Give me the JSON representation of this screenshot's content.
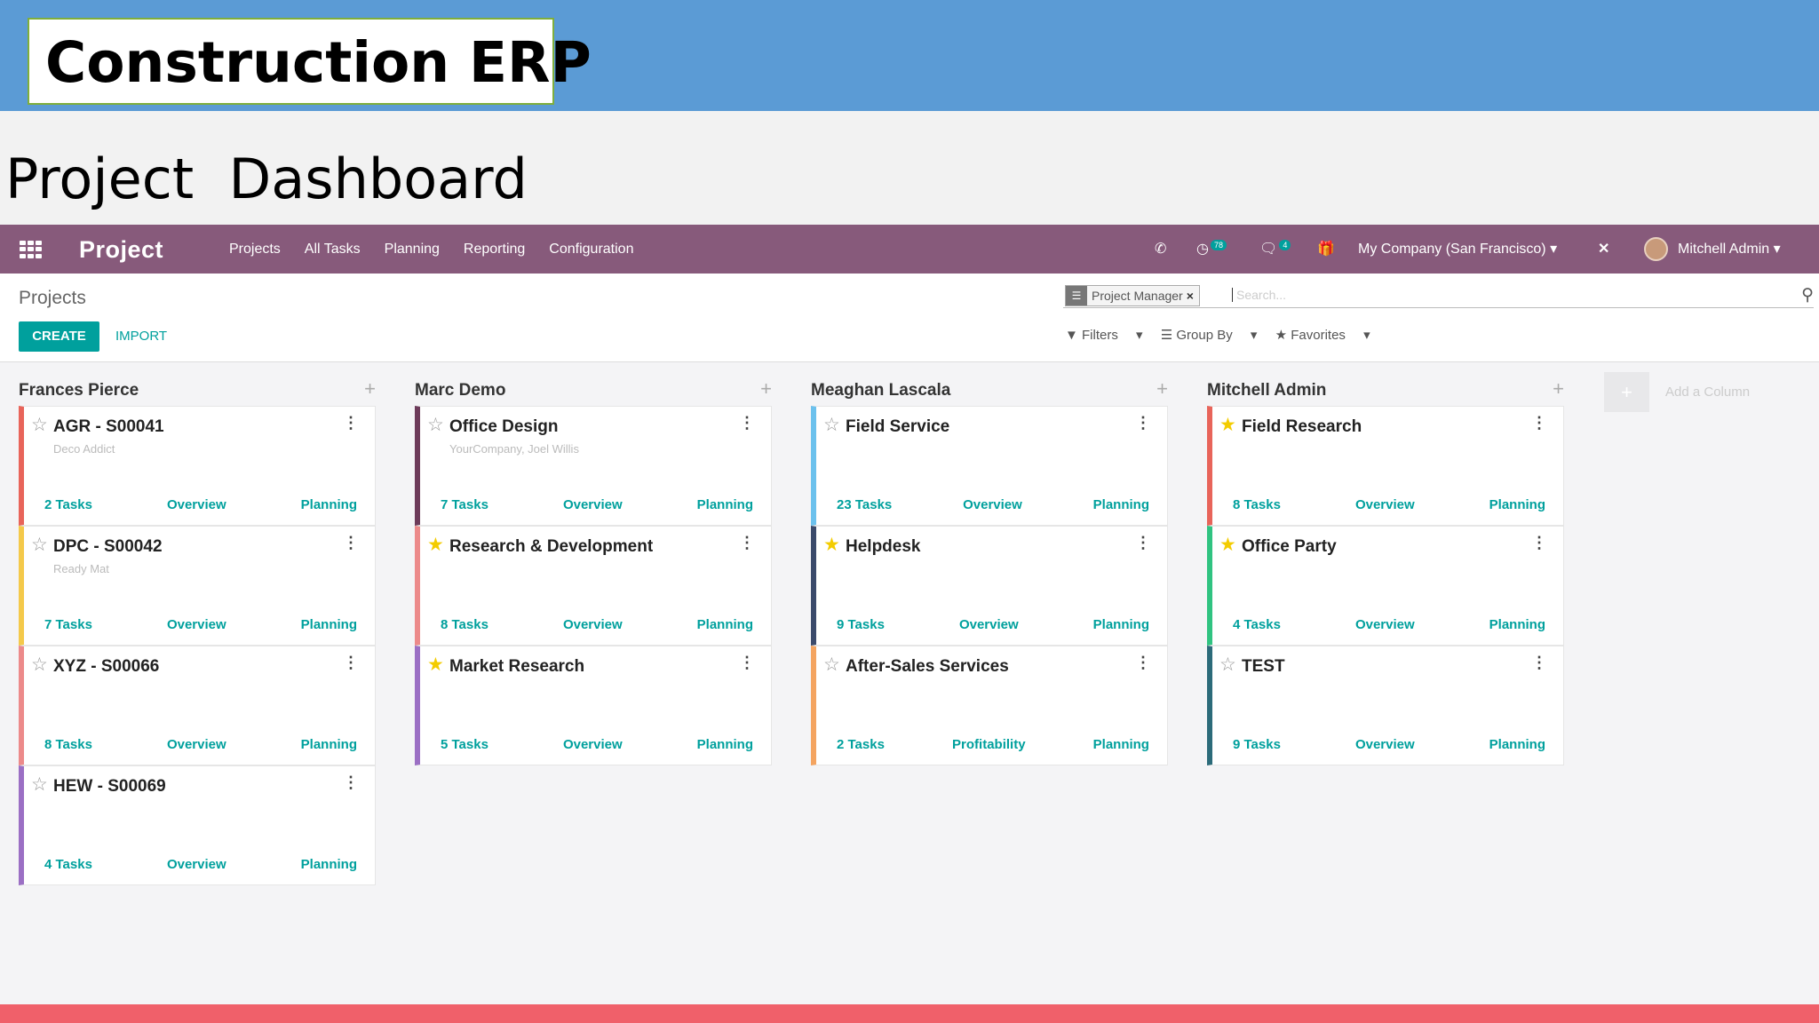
{
  "slide": {
    "title": "Construction ERP",
    "subtitle": "Project  Dashboard"
  },
  "navbar": {
    "brand": "Project",
    "menu": [
      "Projects",
      "All Tasks",
      "Planning",
      "Reporting",
      "Configuration"
    ],
    "activity_badge": "78",
    "messages_badge": "4",
    "company": "My Company (San Francisco)",
    "user": "Mitchell Admin"
  },
  "control_panel": {
    "breadcrumb": "Projects",
    "create_label": "CREATE",
    "import_label": "IMPORT",
    "facet_label": "Project Manager",
    "search_placeholder": "Search...",
    "filters_label": "Filters",
    "groupby_label": "Group By",
    "favorites_label": "Favorites"
  },
  "columns": [
    {
      "title": "Frances Pierce",
      "cards": [
        {
          "name": "AGR - S00041",
          "sub": "Deco Addict",
          "tasks": "2 Tasks",
          "link2": "Overview",
          "link3": "Planning",
          "starred": false,
          "color": "#e8645a"
        },
        {
          "name": "DPC - S00042",
          "sub": "Ready Mat",
          "tasks": "7 Tasks",
          "link2": "Overview",
          "link3": "Planning",
          "starred": false,
          "color": "#f4c94a"
        },
        {
          "name": "XYZ - S00066",
          "sub": "",
          "tasks": "8 Tasks",
          "link2": "Overview",
          "link3": "Planning",
          "starred": false,
          "color": "#ec8a8a"
        },
        {
          "name": "HEW - S00069",
          "sub": "",
          "tasks": "4 Tasks",
          "link2": "Overview",
          "link3": "Planning",
          "starred": false,
          "color": "#9b6fc4"
        }
      ]
    },
    {
      "title": "Marc Demo",
      "cards": [
        {
          "name": "Office Design",
          "sub": "YourCompany, Joel Willis",
          "tasks": "7 Tasks",
          "link2": "Overview",
          "link3": "Planning",
          "starred": false,
          "color": "#6d3b5a"
        },
        {
          "name": "Research & Development",
          "sub": "",
          "tasks": "8 Tasks",
          "link2": "Overview",
          "link3": "Planning",
          "starred": true,
          "color": "#ec8a8a"
        },
        {
          "name": "Market Research",
          "sub": "",
          "tasks": "5 Tasks",
          "link2": "Overview",
          "link3": "Planning",
          "starred": true,
          "color": "#9b6fc4"
        }
      ]
    },
    {
      "title": "Meaghan Lascala",
      "cards": [
        {
          "name": "Field Service",
          "sub": "",
          "tasks": "23 Tasks",
          "link2": "Overview",
          "link3": "Planning",
          "starred": false,
          "color": "#6cc1ed"
        },
        {
          "name": "Helpdesk",
          "sub": "",
          "tasks": "9 Tasks",
          "link2": "Overview",
          "link3": "Planning",
          "starred": true,
          "color": "#3b4a6b"
        },
        {
          "name": "After-Sales Services",
          "sub": "",
          "tasks": "2 Tasks",
          "link2": "Profitability",
          "link3": "Planning",
          "starred": false,
          "color": "#f4a460"
        }
      ]
    },
    {
      "title": "Mitchell Admin",
      "cards": [
        {
          "name": "Field Research",
          "sub": "",
          "tasks": "8 Tasks",
          "link2": "Overview",
          "link3": "Planning",
          "starred": true,
          "color": "#e8645a"
        },
        {
          "name": "Office Party",
          "sub": "",
          "tasks": "4 Tasks",
          "link2": "Overview",
          "link3": "Planning",
          "starred": true,
          "color": "#30c381"
        },
        {
          "name": "TEST",
          "sub": "",
          "tasks": "9 Tasks",
          "link2": "Overview",
          "link3": "Planning",
          "starred": false,
          "color": "#2c6b7a"
        }
      ]
    }
  ],
  "add_column_label": "Add a Column",
  "colors": {
    "brand": "#875a7b",
    "accent": "#00a09d",
    "slide_band": "#5b9bd5",
    "footer_band": "#f0606a"
  }
}
